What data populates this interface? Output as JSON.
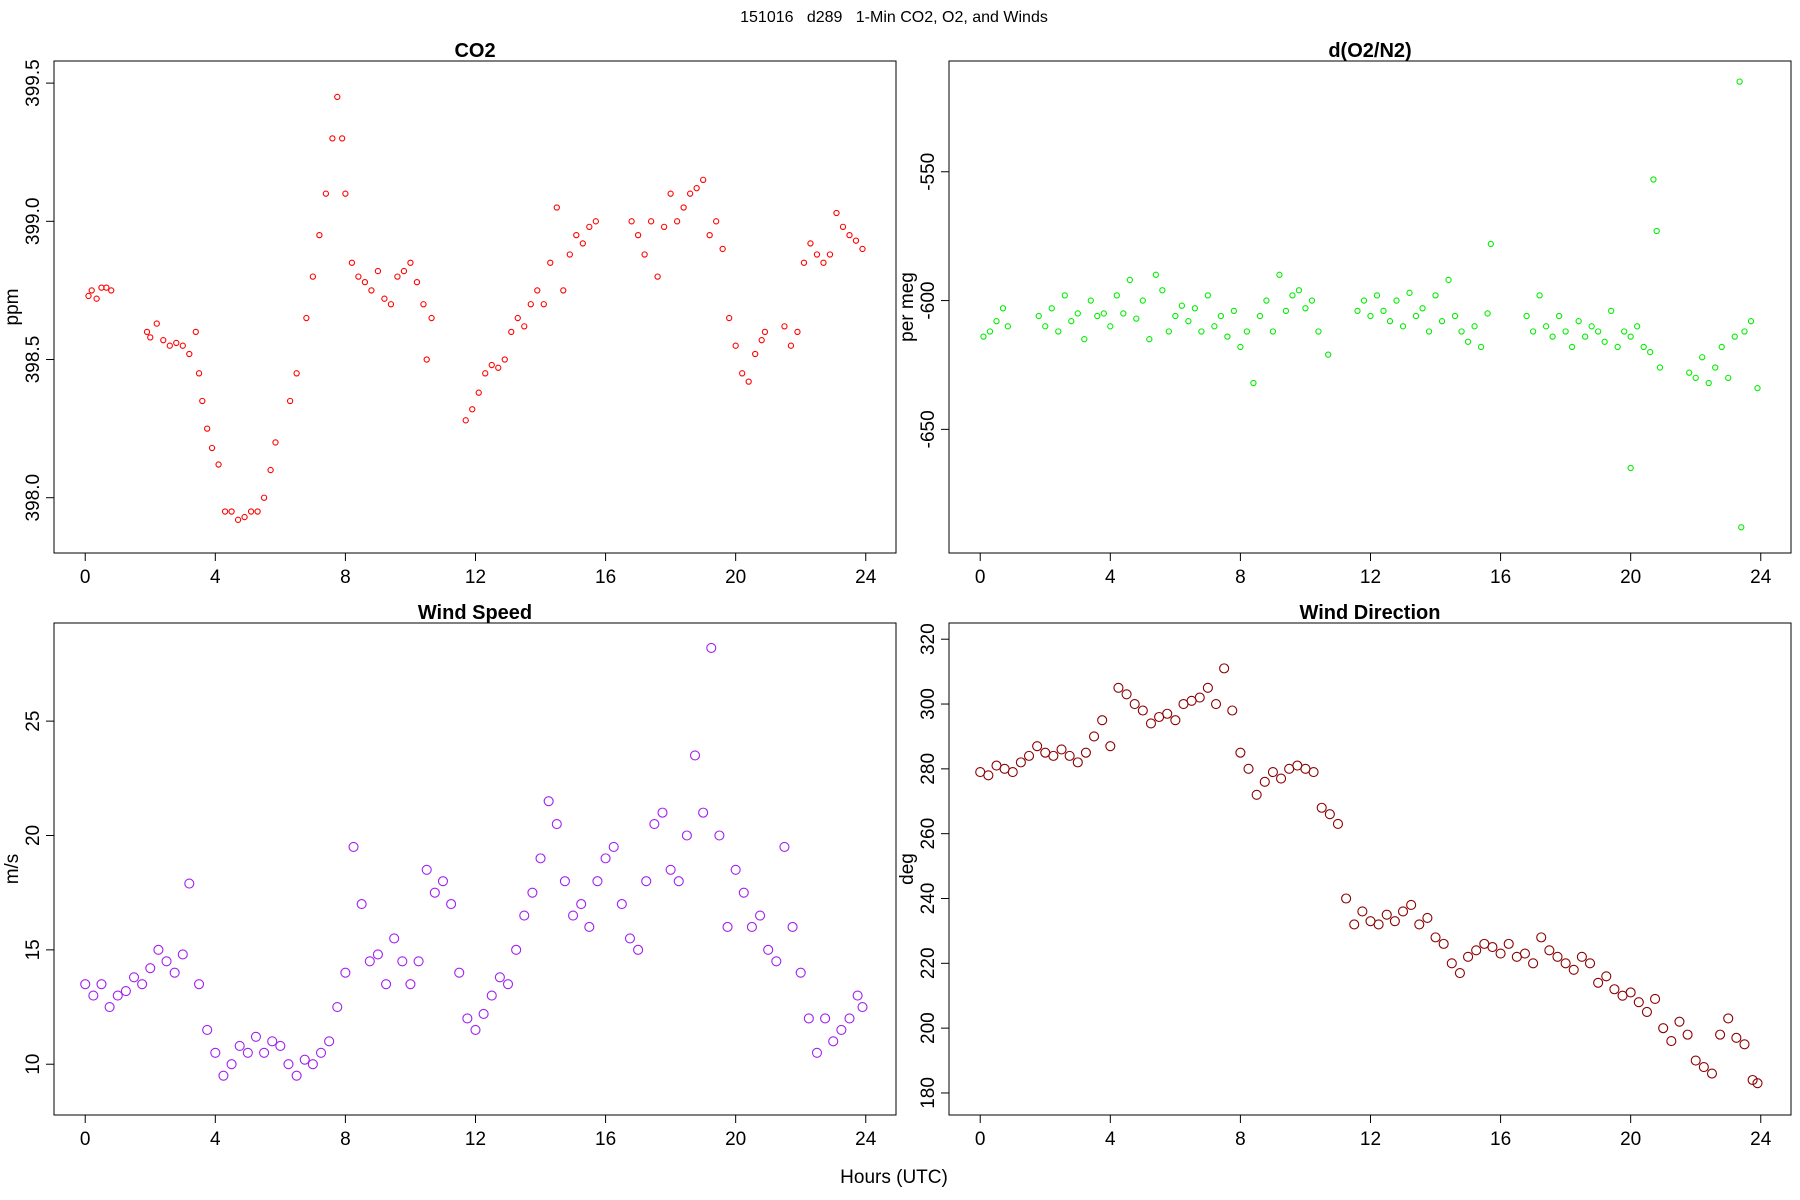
{
  "title": "151016   d289   1-Min CO2, O2, and Winds",
  "xlabel": "Hours (UTC)",
  "chart_data": [
    {
      "type": "scatter",
      "title": "CO2",
      "ylabel": "ppm",
      "color": "#ff0000",
      "x": [
        0.1,
        0.2,
        0.35,
        0.5,
        0.65,
        0.8,
        1.9,
        2.0,
        2.2,
        2.4,
        2.6,
        2.8,
        3.0,
        3.2,
        3.4,
        3.5,
        3.6,
        3.75,
        3.9,
        4.1,
        4.3,
        4.5,
        4.7,
        4.9,
        5.1,
        5.3,
        5.5,
        5.7,
        5.85,
        6.3,
        6.5,
        6.8,
        7.0,
        7.2,
        7.4,
        7.6,
        7.75,
        7.9,
        8.0,
        8.2,
        8.4,
        8.6,
        8.8,
        9.0,
        9.2,
        9.4,
        9.6,
        9.8,
        10.0,
        10.2,
        10.4,
        10.5,
        10.65,
        11.7,
        11.9,
        12.1,
        12.3,
        12.5,
        12.7,
        12.9,
        13.1,
        13.3,
        13.5,
        13.7,
        13.9,
        14.1,
        14.3,
        14.5,
        14.7,
        14.9,
        15.1,
        15.3,
        15.5,
        15.7,
        16.8,
        17.0,
        17.2,
        17.4,
        17.6,
        17.8,
        18.0,
        18.2,
        18.4,
        18.6,
        18.8,
        19.0,
        19.2,
        19.4,
        19.6,
        19.8,
        20.0,
        20.2,
        20.4,
        20.6,
        20.8,
        20.9,
        21.5,
        21.7,
        21.9,
        22.1,
        22.3,
        22.5,
        22.7,
        22.9,
        23.1,
        23.3,
        23.5,
        23.7,
        23.9
      ],
      "values": [
        398.73,
        398.75,
        398.72,
        398.76,
        398.76,
        398.75,
        398.6,
        398.58,
        398.63,
        398.57,
        398.55,
        398.56,
        398.55,
        398.52,
        398.6,
        398.45,
        398.35,
        398.25,
        398.18,
        398.12,
        397.95,
        397.95,
        397.92,
        397.93,
        397.95,
        397.95,
        398.0,
        398.1,
        398.2,
        398.35,
        398.45,
        398.65,
        398.8,
        398.95,
        399.1,
        399.3,
        399.45,
        399.3,
        399.1,
        398.85,
        398.8,
        398.78,
        398.75,
        398.82,
        398.72,
        398.7,
        398.8,
        398.82,
        398.85,
        398.78,
        398.7,
        398.5,
        398.65,
        398.28,
        398.32,
        398.38,
        398.45,
        398.48,
        398.47,
        398.5,
        398.6,
        398.65,
        398.62,
        398.7,
        398.75,
        398.7,
        398.85,
        399.05,
        398.75,
        398.88,
        398.95,
        398.92,
        398.98,
        399.0,
        399.0,
        398.95,
        398.88,
        399.0,
        398.8,
        398.98,
        399.1,
        399.0,
        399.05,
        399.1,
        399.12,
        399.15,
        398.95,
        399.0,
        398.9,
        398.65,
        398.55,
        398.45,
        398.42,
        398.52,
        398.57,
        398.6,
        398.62,
        398.55,
        398.6,
        398.85,
        398.92,
        398.88,
        398.85,
        398.88,
        399.03,
        398.98,
        398.95,
        398.93,
        398.9
      ],
      "xlim": [
        -0.96,
        24.93
      ],
      "xticks": [
        0,
        4,
        8,
        12,
        16,
        20,
        24
      ],
      "ylim": [
        397.8,
        399.58
      ],
      "yticks": [
        {
          "value": 398,
          "label": "398.0"
        },
        398.5,
        {
          "value": 399,
          "label": "399.0"
        },
        399.5
      ]
    },
    {
      "type": "scatter",
      "title": "d(O2/N2)",
      "ylabel": "per meg",
      "color": "#00ee00",
      "x": [
        0.1,
        0.3,
        0.5,
        0.7,
        0.85,
        1.8,
        2.0,
        2.2,
        2.4,
        2.6,
        2.8,
        3.0,
        3.2,
        3.4,
        3.6,
        3.8,
        4.0,
        4.2,
        4.4,
        4.6,
        4.8,
        5.0,
        5.2,
        5.4,
        5.6,
        5.8,
        6.0,
        6.2,
        6.4,
        6.6,
        6.8,
        7.0,
        7.2,
        7.4,
        7.6,
        7.8,
        8.0,
        8.2,
        8.4,
        8.6,
        8.8,
        9.0,
        9.2,
        9.4,
        9.6,
        9.8,
        10.0,
        10.2,
        10.4,
        10.7,
        11.6,
        11.8,
        12.0,
        12.2,
        12.4,
        12.6,
        12.8,
        13.0,
        13.2,
        13.4,
        13.6,
        13.8,
        14.0,
        14.2,
        14.4,
        14.6,
        14.8,
        15.0,
        15.2,
        15.4,
        15.6,
        15.7,
        16.8,
        17.0,
        17.2,
        17.4,
        17.6,
        17.8,
        18.0,
        18.2,
        18.4,
        18.6,
        18.8,
        19.0,
        19.2,
        19.4,
        19.6,
        19.8,
        20.0,
        20.0,
        20.2,
        20.4,
        20.6,
        20.7,
        20.8,
        20.9,
        21.8,
        22.0,
        22.2,
        22.4,
        22.6,
        22.8,
        23.0,
        23.2,
        23.35,
        23.4,
        23.5,
        23.7,
        23.9
      ],
      "values": [
        -614,
        -612,
        -608,
        -603,
        -610,
        -606,
        -610,
        -603,
        -612,
        -598,
        -608,
        -605,
        -615,
        -600,
        -606,
        -605,
        -610,
        -598,
        -605,
        -592,
        -607,
        -600,
        -615,
        -590,
        -596,
        -612,
        -606,
        -602,
        -608,
        -603,
        -612,
        -598,
        -610,
        -606,
        -614,
        -604,
        -618,
        -612,
        -632,
        -606,
        -600,
        -612,
        -590,
        -604,
        -598,
        -596,
        -603,
        -600,
        -612,
        -621,
        -604,
        -600,
        -606,
        -598,
        -604,
        -608,
        -600,
        -610,
        -597,
        -606,
        -603,
        -612,
        -598,
        -608,
        -592,
        -606,
        -612,
        -616,
        -610,
        -618,
        -605,
        -578,
        -606,
        -612,
        -598,
        -610,
        -614,
        -606,
        -612,
        -618,
        -608,
        -614,
        -610,
        -612,
        -616,
        -604,
        -618,
        -612,
        -614,
        -665,
        -610,
        -618,
        -620,
        -553,
        -573,
        -626,
        -628,
        -630,
        -622,
        -632,
        -626,
        -618,
        -630,
        -614,
        -515,
        -688,
        -612,
        -608,
        -634
      ],
      "xlim": [
        -0.96,
        24.93
      ],
      "xticks": [
        0,
        4,
        8,
        12,
        16,
        20,
        24
      ],
      "ylim": [
        -698,
        -507
      ],
      "yticks": [
        -650,
        -600,
        -550
      ]
    },
    {
      "type": "scatter",
      "title": "Wind Speed",
      "ylabel": "m/s",
      "color": "#a020f0",
      "x": [
        0,
        0.25,
        0.5,
        0.75,
        1,
        1.25,
        1.5,
        1.75,
        2,
        2.25,
        2.5,
        2.75,
        3,
        3.2,
        3.5,
        3.75,
        4,
        4.25,
        4.5,
        4.75,
        5,
        5.25,
        5.5,
        5.75,
        6,
        6.25,
        6.5,
        6.75,
        7,
        7.25,
        7.5,
        7.75,
        8,
        8.25,
        8.5,
        8.75,
        9,
        9.25,
        9.5,
        9.75,
        10,
        10.25,
        10.5,
        10.75,
        11,
        11.25,
        11.5,
        11.75,
        12,
        12.25,
        12.5,
        12.75,
        13,
        13.25,
        13.5,
        13.75,
        14,
        14.25,
        14.5,
        14.75,
        15,
        15.25,
        15.5,
        15.75,
        16,
        16.25,
        16.5,
        16.75,
        17,
        17.25,
        17.5,
        17.75,
        18,
        18.25,
        18.5,
        18.75,
        19,
        19.25,
        19.5,
        19.75,
        20,
        20.25,
        20.5,
        20.75,
        21,
        21.25,
        21.5,
        21.75,
        22,
        22.25,
        22.5,
        22.75,
        23,
        23.25,
        23.5,
        23.75,
        23.9
      ],
      "values": [
        13.5,
        13.0,
        13.5,
        12.5,
        13.0,
        13.2,
        13.8,
        13.5,
        14.2,
        15.0,
        14.5,
        14.0,
        14.8,
        17.9,
        13.5,
        11.5,
        10.5,
        9.5,
        10.0,
        10.8,
        10.5,
        11.2,
        10.5,
        11.0,
        10.8,
        10.0,
        9.5,
        10.2,
        10.0,
        10.5,
        11.0,
        12.5,
        14.0,
        19.5,
        17.0,
        14.5,
        14.8,
        13.5,
        15.5,
        14.5,
        13.5,
        14.5,
        18.5,
        17.5,
        18.0,
        17.0,
        14.0,
        12.0,
        11.5,
        12.2,
        13.0,
        13.8,
        13.5,
        15.0,
        16.5,
        17.5,
        19.0,
        21.5,
        20.5,
        18.0,
        16.5,
        17.0,
        16.0,
        18.0,
        19.0,
        19.5,
        17.0,
        15.5,
        15.0,
        18.0,
        20.5,
        21.0,
        18.5,
        18.0,
        20.0,
        23.5,
        21.0,
        28.2,
        20.0,
        16.0,
        18.5,
        17.5,
        16.0,
        16.5,
        15.0,
        14.5,
        19.5,
        16.0,
        14.0,
        12.0,
        10.5,
        12.0,
        11.0,
        11.5,
        12.0,
        13.0,
        12.5
      ],
      "xlim": [
        -0.96,
        24.93
      ],
      "xticks": [
        0,
        4,
        8,
        12,
        16,
        20,
        24
      ],
      "ylim": [
        7.78,
        29.29
      ],
      "yticks": [
        10,
        15,
        20,
        25
      ]
    },
    {
      "type": "scatter",
      "title": "Wind Direction",
      "ylabel": "deg",
      "color": "#8b0000",
      "x": [
        0,
        0.25,
        0.5,
        0.75,
        1,
        1.25,
        1.5,
        1.75,
        2,
        2.25,
        2.5,
        2.75,
        3,
        3.25,
        3.5,
        3.75,
        4,
        4.25,
        4.5,
        4.75,
        5,
        5.25,
        5.5,
        5.75,
        6,
        6.25,
        6.5,
        6.75,
        7,
        7.25,
        7.5,
        7.75,
        8,
        8.25,
        8.5,
        8.75,
        9,
        9.25,
        9.5,
        9.75,
        10,
        10.25,
        10.5,
        10.75,
        11,
        11.25,
        11.5,
        11.75,
        12,
        12.25,
        12.5,
        12.75,
        13,
        13.25,
        13.5,
        13.75,
        14,
        14.25,
        14.5,
        14.75,
        15,
        15.25,
        15.5,
        15.75,
        16,
        16.25,
        16.5,
        16.75,
        17,
        17.25,
        17.5,
        17.75,
        18,
        18.25,
        18.5,
        18.75,
        19,
        19.25,
        19.5,
        19.75,
        20,
        20.25,
        20.5,
        20.75,
        21,
        21.25,
        21.5,
        21.75,
        22,
        22.25,
        22.5,
        22.75,
        23,
        23.25,
        23.5,
        23.75,
        23.9
      ],
      "values": [
        279,
        278,
        281,
        280,
        279,
        282,
        284,
        287,
        285,
        284,
        286,
        284,
        282,
        285,
        290,
        295,
        287,
        305,
        303,
        300,
        298,
        294,
        296,
        297,
        295,
        300,
        301,
        302,
        305,
        300,
        311,
        298,
        285,
        280,
        272,
        276,
        279,
        277,
        280,
        281,
        280,
        279,
        268,
        266,
        263,
        240,
        232,
        236,
        233,
        232,
        235,
        233,
        236,
        238,
        232,
        234,
        228,
        226,
        220,
        217,
        222,
        224,
        226,
        225,
        223,
        226,
        222,
        223,
        220,
        228,
        224,
        222,
        220,
        218,
        222,
        220,
        214,
        216,
        212,
        210,
        211,
        208,
        205,
        209,
        200,
        196,
        202,
        198,
        190,
        188,
        186,
        198,
        203,
        197,
        195,
        184,
        183
      ],
      "xlim": [
        -0.96,
        24.93
      ],
      "xticks": [
        0,
        4,
        8,
        12,
        16,
        20,
        24
      ],
      "ylim": [
        173.2,
        325
      ],
      "yticks": [
        180,
        200,
        220,
        240,
        260,
        280,
        300,
        320
      ]
    }
  ]
}
